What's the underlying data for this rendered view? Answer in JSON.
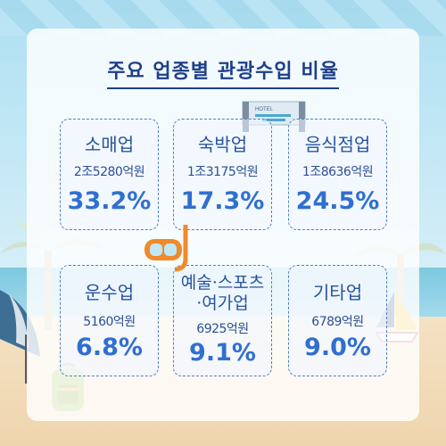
{
  "title": "주요 업종별 관광수입 비율",
  "cards": [
    {
      "name": "소매업",
      "amount": "2조5280억원",
      "percent": "33.2%"
    },
    {
      "name": "숙박업",
      "amount": "1조3175억원",
      "percent": "17.3%"
    },
    {
      "name": "음식점업",
      "amount": "1조8636억원",
      "percent": "24.5%"
    },
    {
      "name": "운수업",
      "amount": "5160억원",
      "percent": "6.8%"
    },
    {
      "name_line1": "예술·스포츠",
      "name_line2": "·여가업",
      "amount": "6925억원",
      "percent": "9.1%"
    },
    {
      "name": "기타업",
      "amount": "6789억원",
      "percent": "9.0%"
    }
  ],
  "hotel_sign": "HOTEL",
  "colors": {
    "title": "#1f3f8a",
    "percent": "#2f6fd1",
    "border": "#4d7fcf"
  },
  "decorations": [
    "hotel-icon",
    "snorkel-mask-icon",
    "beach-umbrella-icon",
    "backpack-icon",
    "sailboat-icon",
    "palm-tree-icon"
  ]
}
